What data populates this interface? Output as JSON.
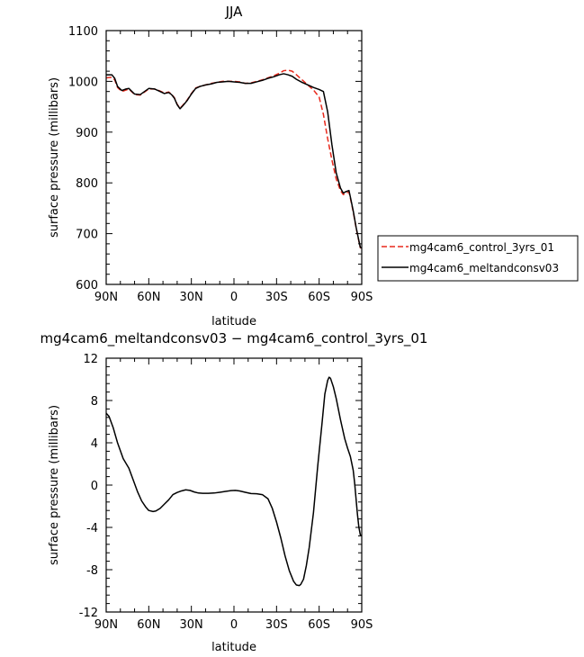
{
  "chart_data": [
    {
      "type": "line",
      "title": "JJA",
      "xlabel": "latitude",
      "ylabel": "surface pressure (millibars)",
      "xlim": [
        90,
        -90
      ],
      "ylim": [
        600,
        1100
      ],
      "xticks": [
        {
          "value": 90,
          "label": "90N"
        },
        {
          "value": 60,
          "label": "60N"
        },
        {
          "value": 30,
          "label": "30N"
        },
        {
          "value": 0,
          "label": "0"
        },
        {
          "value": -30,
          "label": "30S"
        },
        {
          "value": -60,
          "label": "60S"
        },
        {
          "value": -90,
          "label": "90S"
        }
      ],
      "yticks": [
        600,
        700,
        800,
        900,
        1000,
        1100
      ],
      "legend_position": "right",
      "series": [
        {
          "name": "mg4cam6_control_3yrs_01",
          "color": "#e8291c",
          "dash": "dashed",
          "x": [
            90,
            86,
            84,
            82,
            79,
            76,
            74,
            70,
            66,
            63,
            60,
            56,
            52,
            49,
            46,
            44,
            42,
            40,
            38,
            36,
            33,
            30,
            27,
            24,
            20,
            16,
            12,
            8,
            4,
            0,
            -4,
            -8,
            -12,
            -16,
            -20,
            -24,
            -28,
            -32,
            -35,
            -38,
            -41,
            -44,
            -48,
            -52,
            -56,
            -60,
            -63,
            -66,
            -69,
            -72,
            -75,
            -77,
            -79,
            -81,
            -82,
            -84,
            -86,
            -88,
            -89,
            -90
          ],
          "y": [
            1007,
            1008,
            1003,
            988,
            980,
            983,
            985,
            974,
            973,
            979,
            985,
            985,
            981,
            977,
            979,
            975,
            968,
            955,
            947,
            953,
            963,
            976,
            987,
            990,
            993,
            996,
            998,
            1000,
            1000,
            1000,
            999,
            996,
            997,
            1000,
            1003,
            1007,
            1011,
            1016,
            1021,
            1022,
            1020,
            1013,
            1003,
            993,
            983,
            969,
            935,
            887,
            845,
            808,
            785,
            777,
            780,
            782,
            770,
            743,
            712,
            685,
            672,
            672
          ]
        },
        {
          "name": "mg4cam6_meltandconsv03",
          "color": "#000000",
          "dash": "solid",
          "x": [
            90,
            86,
            84,
            82,
            79,
            76,
            74,
            70,
            66,
            63,
            60,
            56,
            52,
            49,
            46,
            44,
            42,
            40,
            38,
            36,
            33,
            30,
            27,
            24,
            20,
            16,
            12,
            8,
            4,
            0,
            -4,
            -8,
            -12,
            -16,
            -20,
            -24,
            -28,
            -32,
            -35,
            -38,
            -41,
            -44,
            -48,
            -52,
            -56,
            -60,
            -63,
            -66,
            -69,
            -72,
            -75,
            -77,
            -79,
            -81,
            -82,
            -84,
            -86,
            -88,
            -89,
            -90
          ],
          "y": [
            1013,
            1013,
            1006,
            990,
            982,
            985,
            986,
            975,
            974,
            980,
            986,
            985,
            980,
            976,
            978,
            974,
            967,
            954,
            946,
            952,
            962,
            975,
            986,
            990,
            993,
            995,
            998,
            999,
            1000,
            999,
            998,
            996,
            996,
            999,
            1002,
            1006,
            1009,
            1013,
            1015,
            1013,
            1010,
            1004,
            998,
            993,
            988,
            984,
            980,
            940,
            875,
            820,
            790,
            780,
            783,
            785,
            772,
            745,
            713,
            686,
            673,
            672
          ]
        }
      ]
    },
    {
      "type": "line",
      "title": "mg4cam6_meltandconsv03 − mg4cam6_control_3yrs_01",
      "xlabel": "latitude",
      "ylabel": "surface pressure (millibars)",
      "xlim": [
        90,
        -90
      ],
      "ylim": [
        -12,
        12
      ],
      "xticks": [
        {
          "value": 90,
          "label": "90N"
        },
        {
          "value": 60,
          "label": "60N"
        },
        {
          "value": 30,
          "label": "30N"
        },
        {
          "value": 0,
          "label": "0"
        },
        {
          "value": -30,
          "label": "30S"
        },
        {
          "value": -60,
          "label": "60S"
        },
        {
          "value": -90,
          "label": "90S"
        }
      ],
      "yticks": [
        -12,
        -8,
        -4,
        0,
        4,
        8,
        12
      ],
      "series": [
        {
          "color": "#000000",
          "dash": "solid",
          "x": [
            90,
            88,
            85,
            82,
            78,
            74,
            71,
            68,
            65,
            62,
            60,
            57,
            55,
            52,
            49,
            46,
            43,
            40,
            37,
            34,
            31,
            28,
            25,
            22,
            18,
            14,
            10,
            6,
            2,
            -1,
            -4,
            -8,
            -12,
            -16,
            -20,
            -24,
            -27,
            -30,
            -33,
            -36,
            -39,
            -42,
            -44,
            -46,
            -47,
            -49,
            -51,
            -53,
            -56,
            -59,
            -62,
            -64,
            -66,
            -67,
            -68,
            -70,
            -72,
            -75,
            -78,
            -80,
            -82,
            -84,
            -85,
            -86,
            -87,
            -88,
            -89,
            -90
          ],
          "y": [
            6.8,
            6.5,
            5.4,
            4.0,
            2.5,
            1.6,
            0.5,
            -0.6,
            -1.5,
            -2.1,
            -2.4,
            -2.5,
            -2.45,
            -2.2,
            -1.8,
            -1.4,
            -0.9,
            -0.7,
            -0.55,
            -0.45,
            -0.5,
            -0.65,
            -0.75,
            -0.78,
            -0.78,
            -0.75,
            -0.68,
            -0.6,
            -0.52,
            -0.5,
            -0.55,
            -0.68,
            -0.8,
            -0.82,
            -0.9,
            -1.3,
            -2.2,
            -3.5,
            -5.0,
            -6.7,
            -8.1,
            -9.1,
            -9.45,
            -9.5,
            -9.4,
            -8.9,
            -7.6,
            -5.9,
            -2.6,
            1.8,
            5.8,
            8.6,
            9.9,
            10.2,
            10.1,
            9.3,
            8.2,
            6.2,
            4.4,
            3.5,
            2.7,
            1.4,
            0.2,
            -1.3,
            -2.8,
            -4.0,
            -4.7,
            -4.8
          ]
        }
      ]
    }
  ]
}
